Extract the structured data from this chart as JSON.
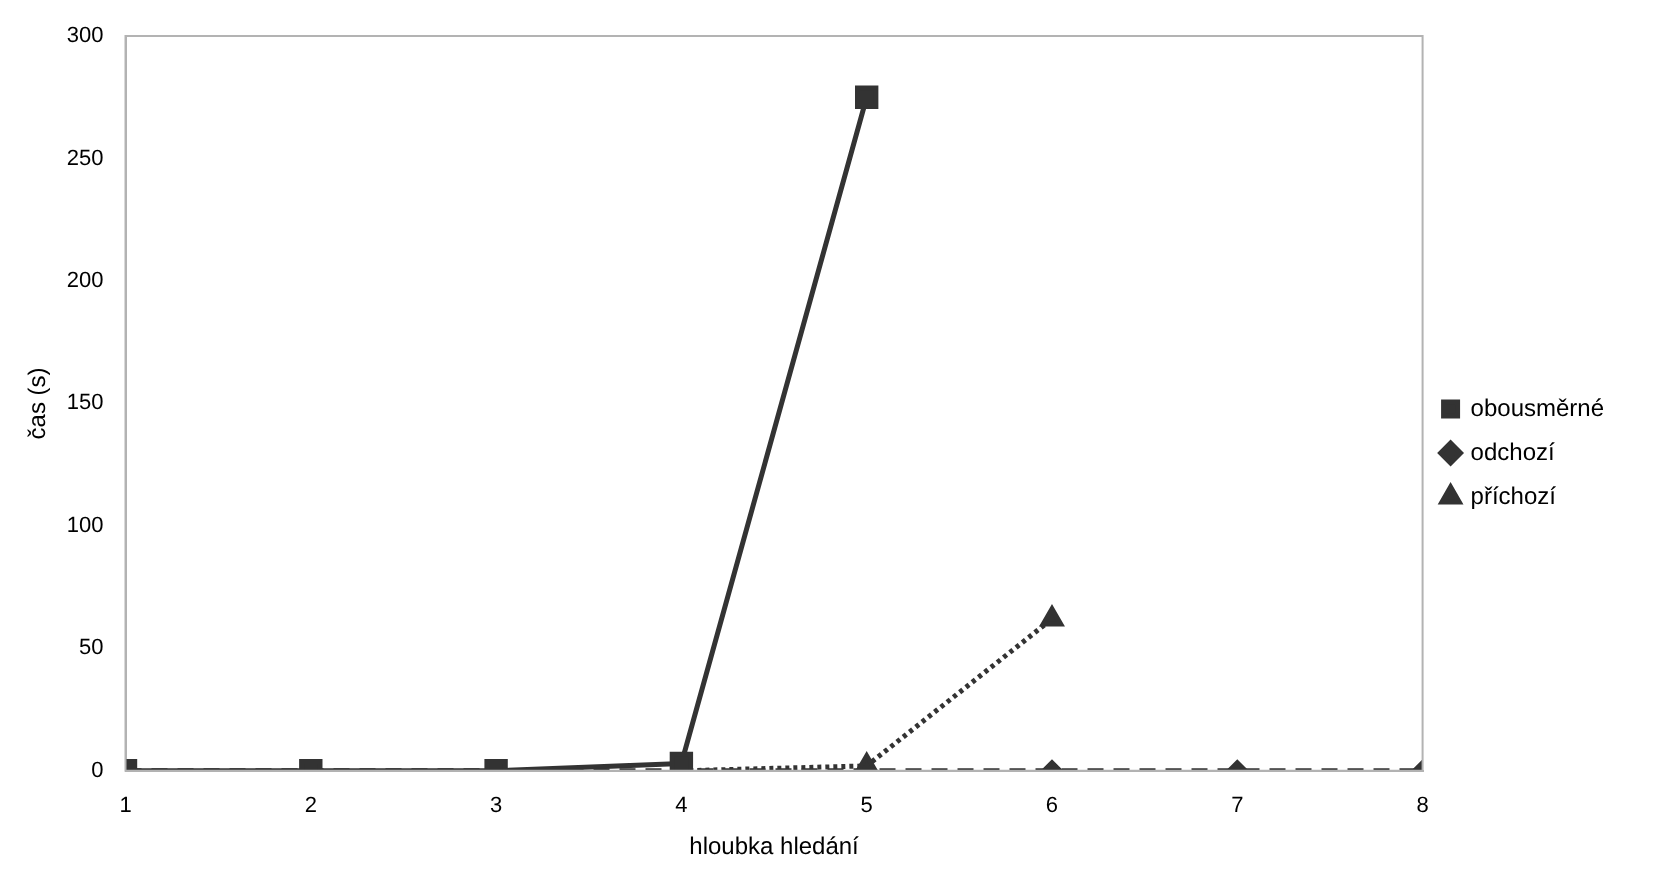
{
  "chart_data": {
    "type": "line",
    "xlabel": "hloubka hledání",
    "ylabel": "čas (s)",
    "x": [
      1,
      2,
      3,
      4,
      5,
      6,
      7,
      8
    ],
    "xlim": [
      1,
      8
    ],
    "xticks": [
      1,
      2,
      3,
      4,
      5,
      6,
      7,
      8
    ],
    "ylim": [
      0,
      300
    ],
    "yticks": [
      0,
      50,
      100,
      150,
      200,
      250,
      300
    ],
    "grid": false,
    "legend": "right",
    "series": [
      {
        "name": "obousměrné",
        "color": "#333333",
        "marker": "square",
        "line_style": "solid",
        "values": [
          0,
          0,
          0,
          3,
          275,
          null,
          null,
          null
        ]
      },
      {
        "name": "odchozí",
        "color": "#333333",
        "marker": "diamond",
        "line_style": "dashed",
        "values": [
          0,
          0,
          0,
          0,
          0,
          0,
          0,
          0
        ]
      },
      {
        "name": "příchozí",
        "color": "#333333",
        "marker": "triangle",
        "line_style": "dotted",
        "values": [
          null,
          null,
          null,
          0,
          2,
          62,
          null,
          null
        ]
      }
    ]
  }
}
